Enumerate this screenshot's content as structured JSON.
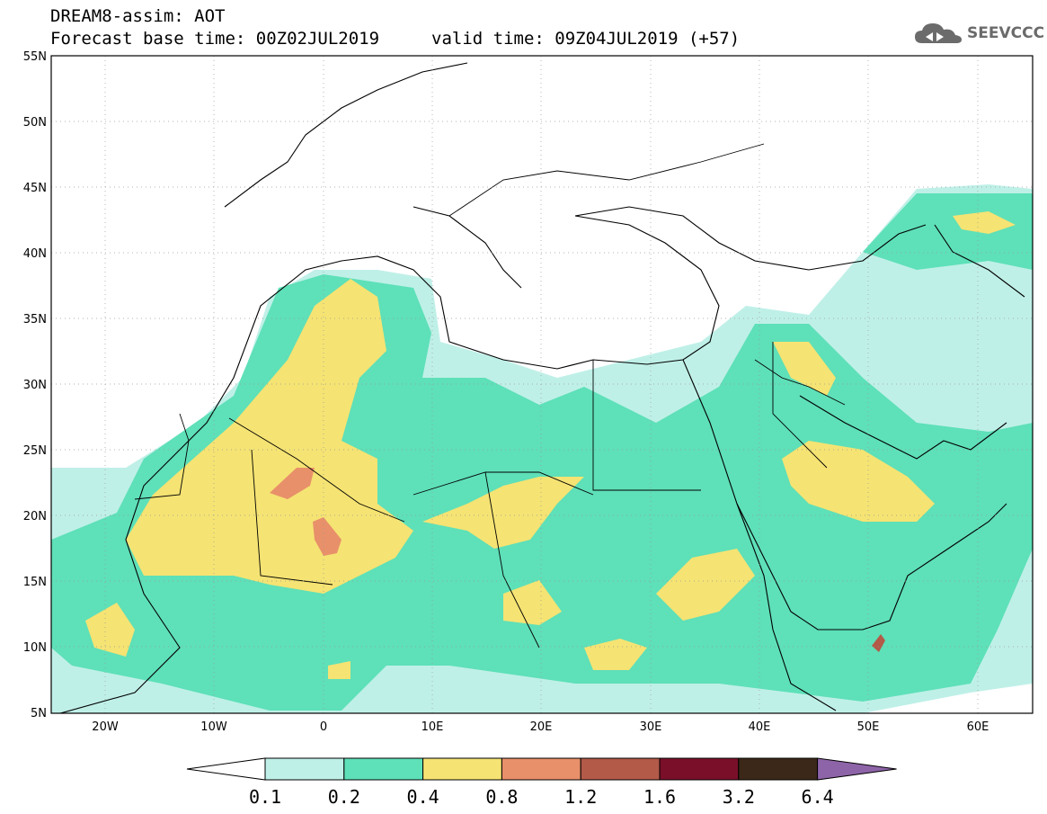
{
  "header": {
    "title": "DREAM8-assim: AOT",
    "base_time": "Forecast base time: 00Z02JUL2019",
    "valid_time": "valid time: 09Z04JUL2019 (+57)",
    "logo_text": "SEEVCCC",
    "logo_icon": "cloud-icon"
  },
  "map": {
    "lat_labels": [
      "55N",
      "50N",
      "45N",
      "40N",
      "35N",
      "30N",
      "25N",
      "20N",
      "15N",
      "10N",
      "5N"
    ],
    "lon_labels": [
      "20W",
      "10W",
      "0",
      "10E",
      "20E",
      "30E",
      "40E",
      "50E",
      "60E"
    ],
    "lon_range": [
      -25,
      65
    ],
    "lat_range": [
      5,
      55
    ],
    "grid": true
  },
  "legend": {
    "labels": [
      "0.1",
      "0.2",
      "0.4",
      "0.8",
      "1.2",
      "1.6",
      "3.2",
      "6.4"
    ],
    "colors": [
      "#ffffff",
      "#bff0e8",
      "#5ee0b8",
      "#f5e373",
      "#e8906a",
      "#b35a48",
      "#7a0f2a",
      "#3b2818",
      "#8e64a8"
    ]
  }
}
